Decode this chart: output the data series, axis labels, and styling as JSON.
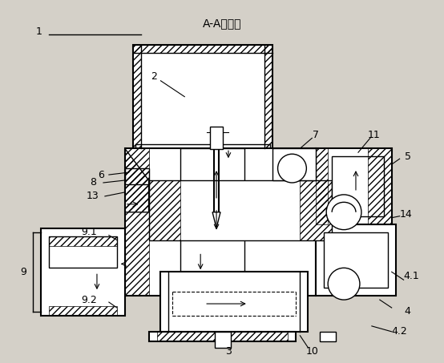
{
  "title": "A-A剖视图",
  "background_color": "#d4d0c8",
  "line_color": "#000000",
  "hatch_color": "#000000",
  "label_1": "1",
  "label_2": "2",
  "label_3": "3",
  "label_4": "4",
  "label_4_1": "4.1",
  "label_4_2": "4.2",
  "label_5": "5",
  "label_6": "6",
  "label_7": "7",
  "label_8": "8",
  "label_9": "9",
  "label_9_1": "9.1",
  "label_9_2": "9.2",
  "label_10": "10",
  "label_11": "11",
  "label_13": "13",
  "label_14": "14",
  "fig_width": 5.54,
  "fig_height": 4.53,
  "dpi": 100
}
